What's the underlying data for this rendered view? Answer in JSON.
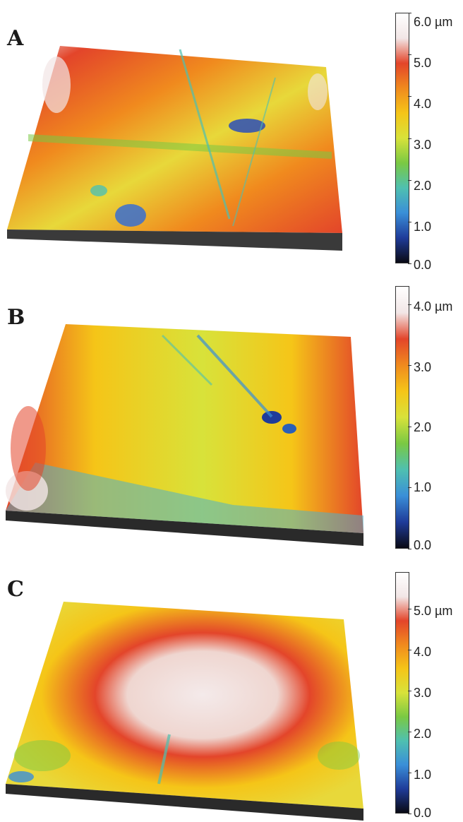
{
  "panels": [
    {
      "label": "A",
      "scale": {
        "max": 6.0,
        "ticks": [
          "6.0 µm",
          "5.0",
          "4.0",
          "3.0",
          "2.0",
          "1.0",
          "0.0"
        ],
        "tick_values": [
          6,
          5,
          4,
          3,
          2,
          1,
          0
        ]
      }
    },
    {
      "label": "B",
      "scale": {
        "max": 4.3,
        "ticks": [
          "4.0 µm",
          "3.0",
          "2.0",
          "1.0",
          "0.0"
        ],
        "tick_values": [
          4,
          3,
          2,
          1,
          0
        ]
      }
    },
    {
      "label": "C",
      "scale": {
        "max": 5.9,
        "ticks": [
          "5.0 µm",
          "4.0",
          "3.0",
          "2.0",
          "1.0",
          "0.0"
        ],
        "tick_values": [
          5,
          4,
          3,
          2,
          1,
          0
        ]
      }
    }
  ],
  "colors": {
    "colormap": [
      "#0a0a14",
      "#1f3c9a",
      "#3a8fd8",
      "#4fc0b0",
      "#7ac943",
      "#d8e23a",
      "#f5c518",
      "#f08a1e",
      "#e3452a",
      "#f2e6e6",
      "#ffffff"
    ]
  }
}
